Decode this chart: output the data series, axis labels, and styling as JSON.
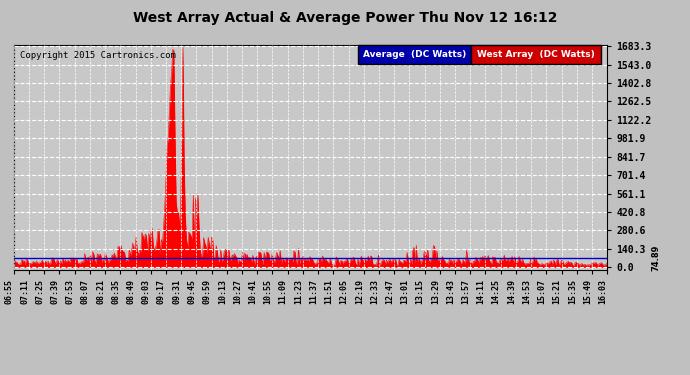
{
  "title": "West Array Actual & Average Power Thu Nov 12 16:12",
  "copyright": "Copyright 2015 Cartronics.com",
  "background_color": "#c0c0c0",
  "plot_bg_color": "#c8c8c8",
  "yticks": [
    0.0,
    140.3,
    280.6,
    420.8,
    561.1,
    701.4,
    841.7,
    981.9,
    1122.2,
    1262.5,
    1402.8,
    1543.0,
    1683.3
  ],
  "avg_value": 74.89,
  "avg_label": "74.89",
  "avg_color": "#0000cc",
  "west_array_color": "#ff0000",
  "legend_avg_bg": "#0000aa",
  "legend_avg_text": "Average  (DC Watts)",
  "legend_west_bg": "#cc0000",
  "legend_west_text": "West Array  (DC Watts)",
  "xlabel_rotation": 90,
  "grid_color": "#ffffff",
  "grid_linestyle": "--",
  "tick_labels": [
    "06:55",
    "07:11",
    "07:25",
    "07:39",
    "07:53",
    "08:07",
    "08:21",
    "08:35",
    "08:49",
    "09:03",
    "09:17",
    "09:31",
    "09:45",
    "09:59",
    "10:13",
    "10:27",
    "10:41",
    "10:55",
    "11:09",
    "11:23",
    "11:37",
    "11:51",
    "12:05",
    "12:19",
    "12:33",
    "12:47",
    "13:01",
    "13:15",
    "13:29",
    "13:43",
    "13:57",
    "14:11",
    "14:25",
    "14:39",
    "14:53",
    "15:07",
    "15:21",
    "15:35",
    "15:49",
    "16:03"
  ],
  "ymax": 1683.3,
  "ymin": -20
}
